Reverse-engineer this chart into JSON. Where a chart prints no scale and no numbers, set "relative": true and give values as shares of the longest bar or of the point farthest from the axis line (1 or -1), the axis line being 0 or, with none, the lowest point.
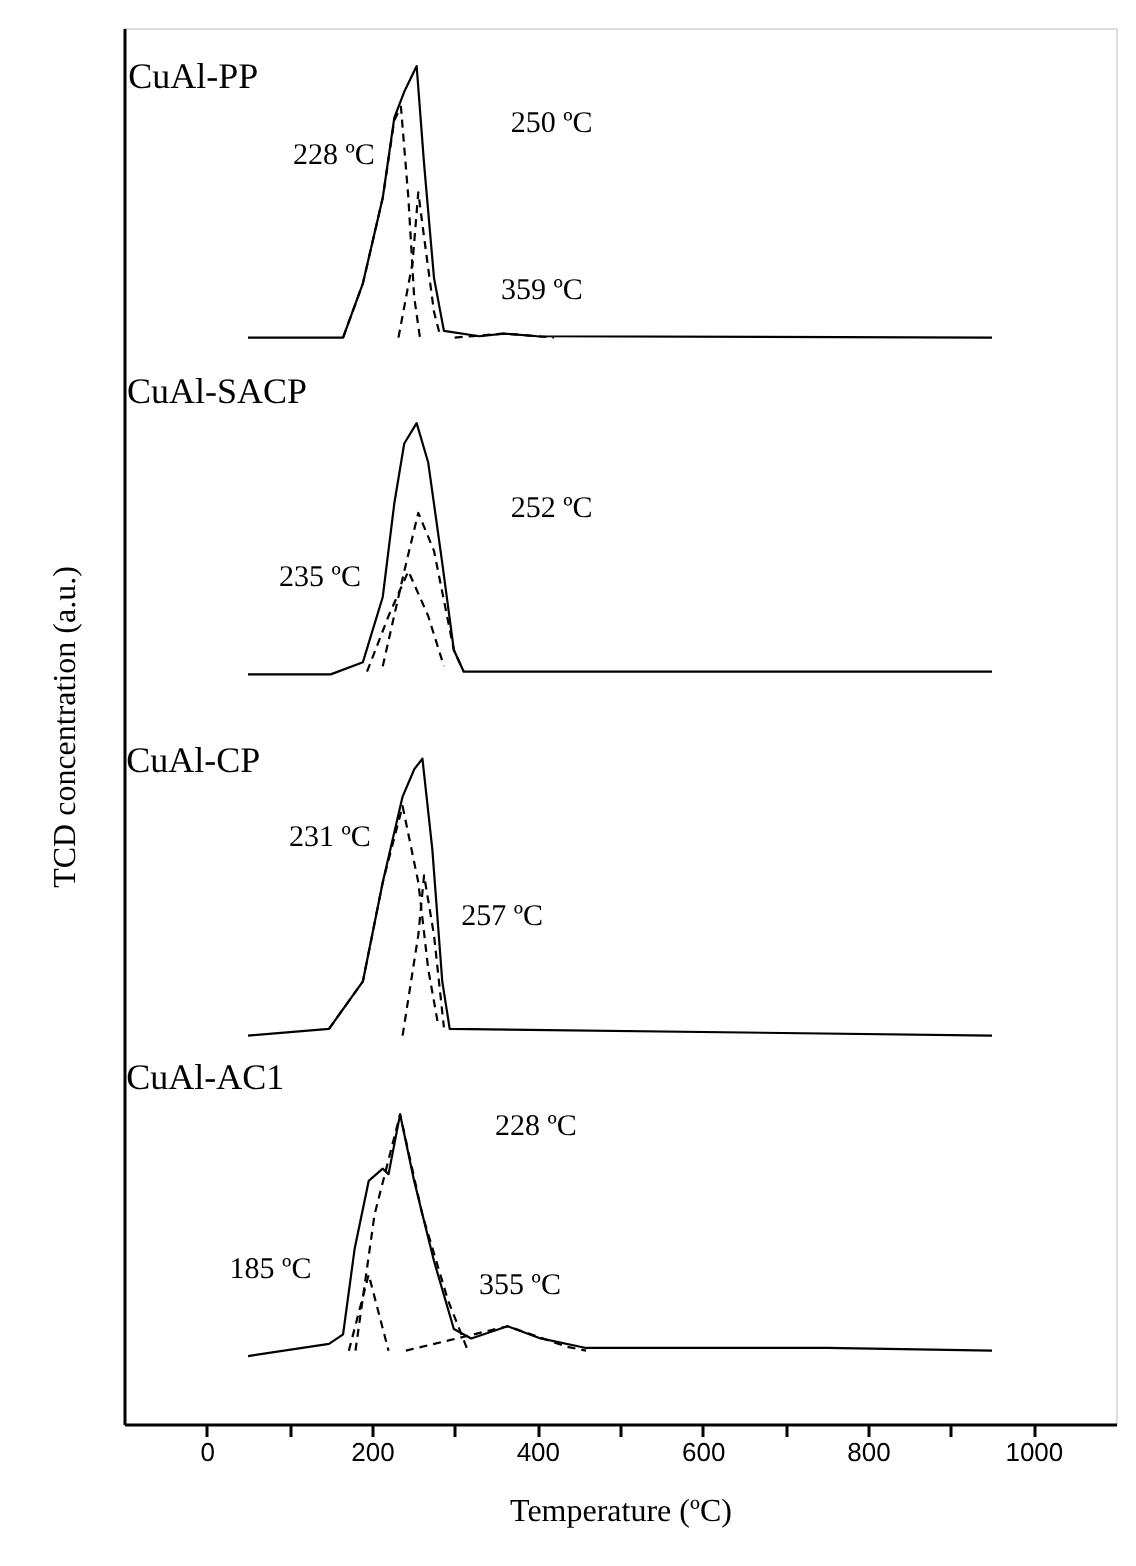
{
  "chart_data": {
    "type": "line",
    "relative": true,
    "xlabel": "Temperature (ºC)",
    "ylabel": "TCD concentration (a.u.)",
    "xlim": [
      -100,
      1100
    ],
    "xticks": [
      0,
      {
        "value": 100,
        "label": null
      },
      200,
      {
        "value": 300,
        "label": null
      },
      400,
      {
        "value": 500,
        "label": null
      },
      600,
      {
        "value": 700,
        "label": null
      },
      800,
      {
        "value": 900,
        "label": null
      },
      1000
    ],
    "grid": false,
    "series": [
      {
        "color": "#000000",
        "line_style": "solid",
        "x": [
          50,
          165,
          189,
          213,
          227,
          239,
          254,
          263,
          275,
          287,
          330,
          360,
          400,
          950
        ],
        "values": [
          0.8,
          0.8,
          0.84,
          0.903,
          0.962,
          0.981,
          1.0,
          0.928,
          0.844,
          0.805,
          0.801,
          0.803,
          0.801,
          0.8
        ]
      },
      {
        "color": "#000000",
        "line_style": "dashed",
        "x": [
          165,
          189,
          213,
          227,
          235,
          244,
          251,
          258
        ],
        "values": [
          0.8,
          0.84,
          0.903,
          0.96,
          0.97,
          0.903,
          0.83,
          0.8
        ]
      },
      {
        "color": "#000000",
        "line_style": "dashed",
        "x": [
          232,
          249,
          256,
          263,
          275,
          283
        ],
        "values": [
          0.8,
          0.855,
          0.907,
          0.874,
          0.819,
          0.8
        ]
      },
      {
        "color": "#000000",
        "line_style": "dashed",
        "x": [
          300,
          360,
          420
        ],
        "values": [
          0.8,
          0.803,
          0.8
        ]
      },
      {
        "color": "#000000",
        "line_style": "solid",
        "x": [
          50,
          150,
          189,
          213,
          227,
          239,
          254,
          268,
          285,
          299,
          311,
          950
        ],
        "values": [
          0.552,
          0.552,
          0.561,
          0.609,
          0.678,
          0.722,
          0.737,
          0.708,
          0.634,
          0.57,
          0.554,
          0.554
        ]
      },
      {
        "color": "#000000",
        "line_style": "dashed",
        "x": [
          194,
          220,
          244,
          268,
          287
        ],
        "values": [
          0.554,
          0.595,
          0.628,
          0.595,
          0.558
        ]
      },
      {
        "color": "#000000",
        "line_style": "dashed",
        "x": [
          213,
          239,
          256,
          275,
          299,
          311
        ],
        "values": [
          0.558,
          0.628,
          0.671,
          0.643,
          0.57,
          0.554
        ]
      },
      {
        "color": "#000000",
        "line_style": "solid",
        "x": [
          50,
          148,
          189,
          213,
          237,
          251,
          261,
          273,
          285,
          294,
          950
        ],
        "values": [
          0.286,
          0.291,
          0.326,
          0.399,
          0.462,
          0.482,
          0.49,
          0.423,
          0.326,
          0.291,
          0.286
        ]
      },
      {
        "color": "#000000",
        "line_style": "dashed",
        "x": [
          148,
          189,
          213,
          237,
          256,
          268,
          280
        ],
        "values": [
          0.291,
          0.326,
          0.399,
          0.455,
          0.399,
          0.335,
          0.294
        ]
      },
      {
        "color": "#000000",
        "line_style": "dashed",
        "x": [
          237,
          256,
          263,
          275,
          287
        ],
        "values": [
          0.286,
          0.36,
          0.404,
          0.36,
          0.292
        ]
      },
      {
        "color": "#000000",
        "line_style": "solid",
        "x": [
          50,
          148,
          165,
          179,
          196,
          213,
          220,
          234,
          251,
          275,
          299,
          320,
          364,
          404,
          459,
          750,
          950
        ],
        "values": [
          0.05,
          0.059,
          0.066,
          0.129,
          0.179,
          0.188,
          0.184,
          0.228,
          0.179,
          0.12,
          0.07,
          0.063,
          0.072,
          0.063,
          0.056,
          0.056,
          0.054
        ]
      },
      {
        "color": "#000000",
        "line_style": "dashed",
        "x": [
          172,
          196,
          220
        ],
        "values": [
          0.054,
          0.11,
          0.054
        ]
      },
      {
        "color": "#000000",
        "line_style": "dashed",
        "x": [
          180,
          203,
          234,
          261,
          292,
          316
        ],
        "values": [
          0.054,
          0.154,
          0.228,
          0.154,
          0.091,
          0.054
        ]
      },
      {
        "color": "#000000",
        "line_style": "dashed",
        "x": [
          241,
          323,
          364,
          435,
          459
        ],
        "values": [
          0.054,
          0.066,
          0.072,
          0.057,
          0.054
        ]
      }
    ],
    "annotations": [
      "CuAl-PP",
      "228 ºC",
      "250 ºC",
      "359 ºC",
      "CuAl-SACP",
      "252 ºC",
      "235 ºC",
      "CuAl-CP",
      "231 ºC",
      "257 ºC",
      "CuAl-AC1",
      "228 ºC",
      "185 ºC",
      "355 ºC"
    ]
  }
}
